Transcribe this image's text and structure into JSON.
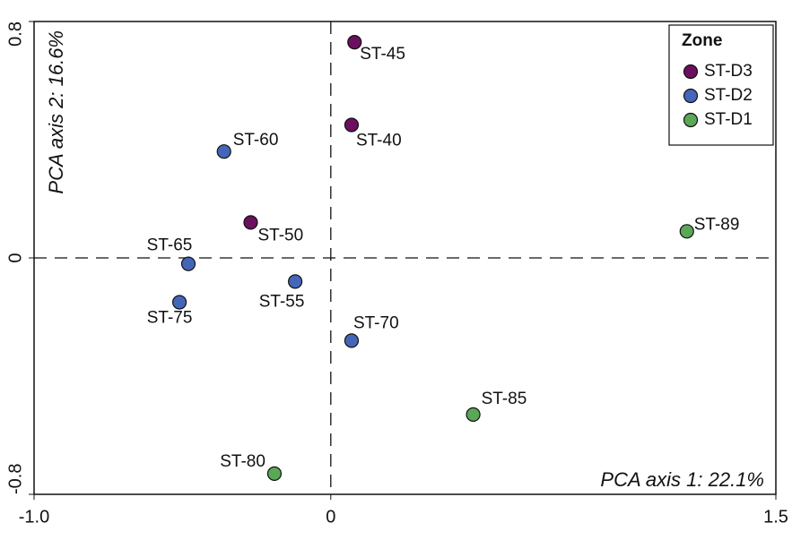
{
  "chart_data": {
    "type": "scatter",
    "x_label": "PCA axis 1: 22.1%",
    "y_label": "PCA axis 2: 16.6%",
    "xlim": [
      -1.0,
      1.5
    ],
    "ylim": [
      -0.8,
      0.8
    ],
    "xticks": [
      {
        "value": -1.0,
        "label": "-1.0"
      },
      0,
      1.5
    ],
    "yticks": [
      -0.8,
      0,
      0.8
    ],
    "zero_lines": true,
    "legend_title": "Zone",
    "legend_position": "upper right",
    "series": [
      {
        "name": "ST-D3",
        "color": "#6b0f5e",
        "labels": [
          "ST-45",
          "ST-40",
          "ST-50"
        ],
        "x": [
          0.08,
          0.07,
          -0.27
        ],
        "values": [
          0.73,
          0.45,
          0.12
        ]
      },
      {
        "name": "ST-D2",
        "color": "#4466b8",
        "labels": [
          "ST-60",
          "ST-65",
          "ST-75",
          "ST-55",
          "ST-70"
        ],
        "x": [
          -0.36,
          -0.48,
          -0.51,
          -0.12,
          0.07
        ],
        "values": [
          0.36,
          -0.02,
          -0.15,
          -0.08,
          -0.28
        ]
      },
      {
        "name": "ST-D1",
        "color": "#5aa857",
        "labels": [
          "ST-89",
          "ST-85",
          "ST-80"
        ],
        "x": [
          1.2,
          0.48,
          -0.19
        ],
        "values": [
          0.09,
          -0.53,
          -0.73
        ]
      }
    ]
  }
}
